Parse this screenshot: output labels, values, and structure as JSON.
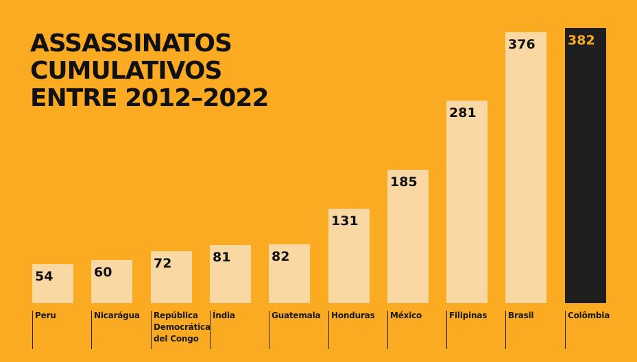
{
  "title_lines": [
    "ASSASSINATOS",
    "CUMULATIVOS",
    "ENTRE 2012–2022"
  ],
  "colors": {
    "background": "#FBAB21",
    "bar": "#F9D8A3",
    "highlight_bar": "#1E1E1E",
    "highlight_label": "#FBAB21",
    "text": "#111111"
  },
  "chart_data": {
    "type": "bar",
    "title": "ASSASSINATOS CUMULATIVOS ENTRE 2012–2022",
    "categories": [
      [
        "Peru"
      ],
      [
        "Nicarágua"
      ],
      [
        "República",
        "Democrática",
        "del Congo"
      ],
      [
        "Índia"
      ],
      [
        "Guatemala"
      ],
      [
        "Honduras"
      ],
      [
        "México"
      ],
      [
        "Filipinas"
      ],
      [
        "Brasil"
      ],
      [
        "Colômbia"
      ]
    ],
    "values": [
      54,
      60,
      72,
      81,
      82,
      131,
      185,
      281,
      376,
      382
    ],
    "highlight_index": 9,
    "ylim": [
      0,
      382
    ],
    "grid": false,
    "legend": "none"
  }
}
